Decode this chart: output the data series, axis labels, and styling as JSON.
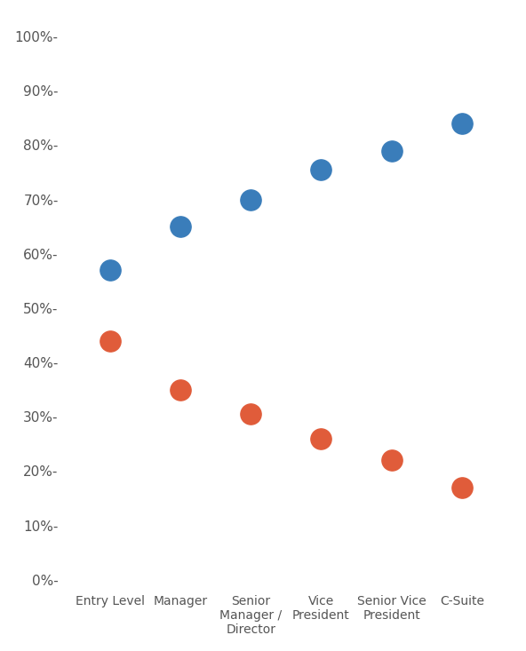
{
  "categories": [
    "Entry Level",
    "Manager",
    "Senior\nManager /\nDirector",
    "Vice\nPresident",
    "Senior Vice\nPresident",
    "C-Suite"
  ],
  "blue_values": [
    0.57,
    0.65,
    0.7,
    0.755,
    0.79,
    0.84
  ],
  "red_values": [
    0.44,
    0.35,
    0.305,
    0.26,
    0.22,
    0.17
  ],
  "blue_color": "#3a7dba",
  "red_color": "#e05c3a",
  "dot_size": 280,
  "background_color": "#ffffff",
  "ylim": [
    -0.01,
    1.04
  ],
  "yticks": [
    0.0,
    0.1,
    0.2,
    0.3,
    0.4,
    0.5,
    0.6,
    0.7,
    0.8,
    0.9,
    1.0
  ],
  "ytick_labels": [
    "0%",
    "10%",
    "20%",
    "30%",
    "40%",
    "50%",
    "60%",
    "70%",
    "80%",
    "90%",
    "100%"
  ],
  "figsize": [
    5.92,
    7.33
  ],
  "dpi": 100
}
